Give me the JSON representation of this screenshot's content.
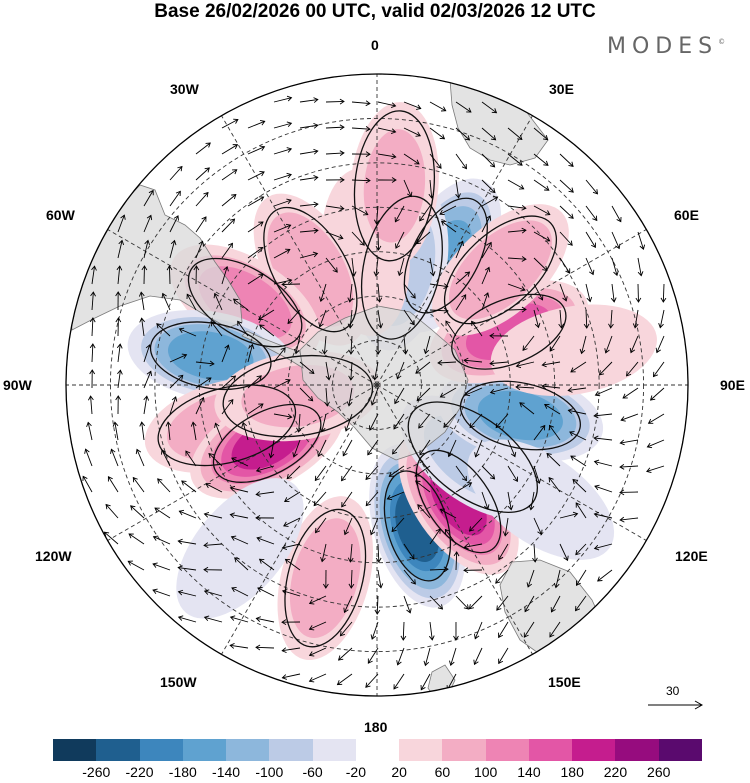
{
  "title": "Base 26/02/2026 00 UTC, valid 02/03/2026 12 UTC",
  "brand": "MODES",
  "brand_mark": "©",
  "longitude_labels": {
    "lon_0": "0",
    "lon_30e": "30E",
    "lon_60e": "60E",
    "lon_90e": "90E",
    "lon_120e": "120E",
    "lon_150e": "150E",
    "lon_180": "180",
    "lon_150w": "150W",
    "lon_120w": "120W",
    "lon_90w": "90W",
    "lon_60w": "60W",
    "lon_30w": "30W"
  },
  "reference_vector": {
    "label": "30"
  },
  "colorbar": {
    "colors": [
      "#103a5c",
      "#1f5f8f",
      "#3d86bd",
      "#5fa2d0",
      "#8db7dc",
      "#bccbe6",
      "#e4e4f2",
      "#ffffff",
      "#f8d6dc",
      "#f3adc4",
      "#ee84b4",
      "#e356a6",
      "#c51d8e",
      "#960c7e",
      "#5a0a6e"
    ],
    "ticks": [
      "-260",
      "-220",
      "-180",
      "-140",
      "-100",
      "-60",
      "-20",
      "20",
      "60",
      "100",
      "140",
      "180",
      "220",
      "260"
    ]
  },
  "anomaly_field": [
    {
      "lon": 28,
      "lat": -57,
      "value": -140
    },
    {
      "lon": 12,
      "lat": -63,
      "value": -70
    },
    {
      "lon": -5,
      "lat": -60,
      "value": 50
    },
    {
      "lon": -30,
      "lat": -60,
      "value": 90
    },
    {
      "lon": -58,
      "lat": -55,
      "value": 130
    },
    {
      "lon": -80,
      "lat": -52,
      "value": -160
    },
    {
      "lon": -105,
      "lat": -55,
      "value": 80
    },
    {
      "lon": -118,
      "lat": -62,
      "value": 200
    },
    {
      "lon": -98,
      "lat": -72,
      "value": 60
    },
    {
      "lon": 164,
      "lat": -57,
      "value": -250
    },
    {
      "lon": 145,
      "lat": -58,
      "value": 200
    },
    {
      "lon": 127,
      "lat": -63,
      "value": -60
    },
    {
      "lon": 102,
      "lat": -57,
      "value": -160
    },
    {
      "lon": 68,
      "lat": -58,
      "value": 170
    },
    {
      "lon": 47,
      "lat": -52,
      "value": 90
    },
    {
      "lon": -165,
      "lat": -45,
      "value": 80
    },
    {
      "lon": -140,
      "lat": -42,
      "value": -50
    },
    {
      "lon": 5,
      "lat": -45,
      "value": 60
    },
    {
      "lon": 80,
      "lat": -45,
      "value": 50
    },
    {
      "lon": 125,
      "lat": -45,
      "value": -40
    }
  ]
}
